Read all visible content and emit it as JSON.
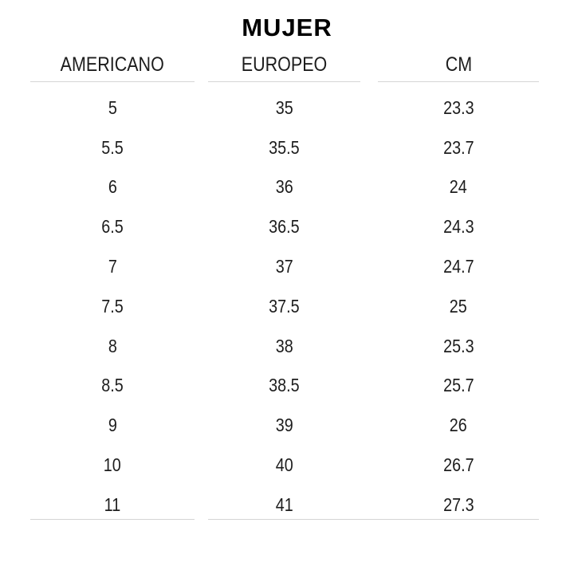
{
  "chart_data": {
    "type": "table",
    "title": "MUJER",
    "columns": [
      "AMERICANO",
      "EUROPEO",
      "CM"
    ],
    "rows": [
      [
        5,
        35,
        23.3
      ],
      [
        5.5,
        35.5,
        23.7
      ],
      [
        6,
        36,
        24
      ],
      [
        6.5,
        36.5,
        24.3
      ],
      [
        7,
        37,
        24.7
      ],
      [
        7.5,
        37.5,
        25
      ],
      [
        8,
        38,
        25.3
      ],
      [
        8.5,
        38.5,
        25.7
      ],
      [
        9,
        39,
        26
      ],
      [
        10,
        40,
        26.7
      ],
      [
        11,
        41,
        27.3
      ]
    ]
  },
  "colors": {
    "background": "#ffffff",
    "text": "#1d1d1d",
    "title": "#000000",
    "rule": "#d5d5d5"
  }
}
